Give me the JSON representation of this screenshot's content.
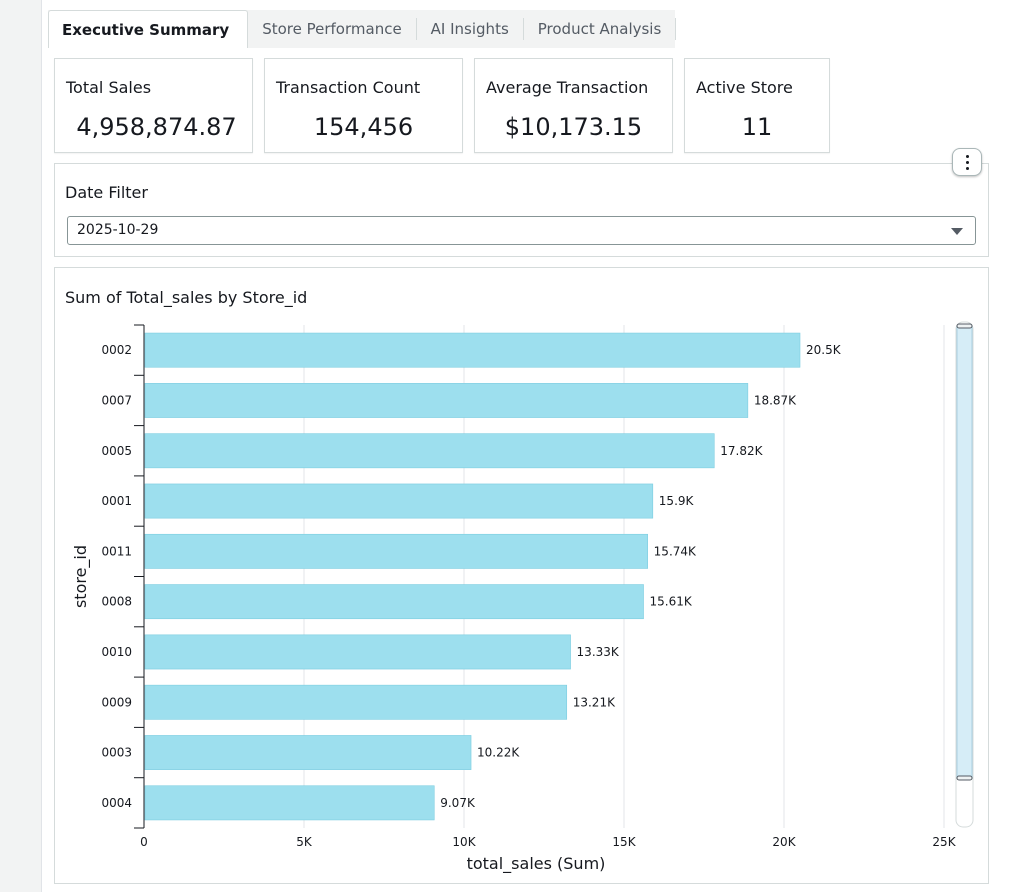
{
  "tabs": [
    {
      "label": "Executive Summary",
      "active": true
    },
    {
      "label": "Store Performance",
      "active": false
    },
    {
      "label": "AI Insights",
      "active": false
    },
    {
      "label": "Product Analysis",
      "active": false
    }
  ],
  "kpis": {
    "total_sales": {
      "label": "Total Sales",
      "value": "4,958,874.87"
    },
    "transaction_count": {
      "label": "Transaction Count",
      "value": "154,456"
    },
    "average_transaction": {
      "label": "Average Transaction",
      "value": "$10,173.15"
    },
    "active_store": {
      "label": "Active Store",
      "value": "11"
    }
  },
  "filter": {
    "label": "Date Filter",
    "selected": "2025-10-29"
  },
  "chart_data": {
    "type": "bar",
    "orientation": "horizontal",
    "title": "Sum of Total_sales by Store_id",
    "xlabel": "total_sales (Sum)",
    "ylabel": "store_id",
    "categories": [
      "0002",
      "0007",
      "0005",
      "0001",
      "0011",
      "0008",
      "0010",
      "0009",
      "0003",
      "0004"
    ],
    "values": [
      20500,
      18870,
      17820,
      15900,
      15740,
      15610,
      13330,
      13210,
      10220,
      9070
    ],
    "data_labels": [
      "20.5K",
      "18.87K",
      "17.82K",
      "15.9K",
      "15.74K",
      "15.61K",
      "13.33K",
      "13.21K",
      "10.22K",
      "9.07K"
    ],
    "xlim": [
      0,
      25000
    ],
    "x_ticks": [
      0,
      5000,
      10000,
      15000,
      20000,
      25000
    ],
    "x_tick_labels": [
      "0",
      "5K",
      "10K",
      "15K",
      "20K",
      "25K"
    ],
    "grid": true,
    "bar_color": "#9ddfee",
    "bar_stroke": "#7ccde0"
  },
  "colors": {
    "border": "#d5dbdb",
    "scroll_track": "#d6edf7"
  }
}
